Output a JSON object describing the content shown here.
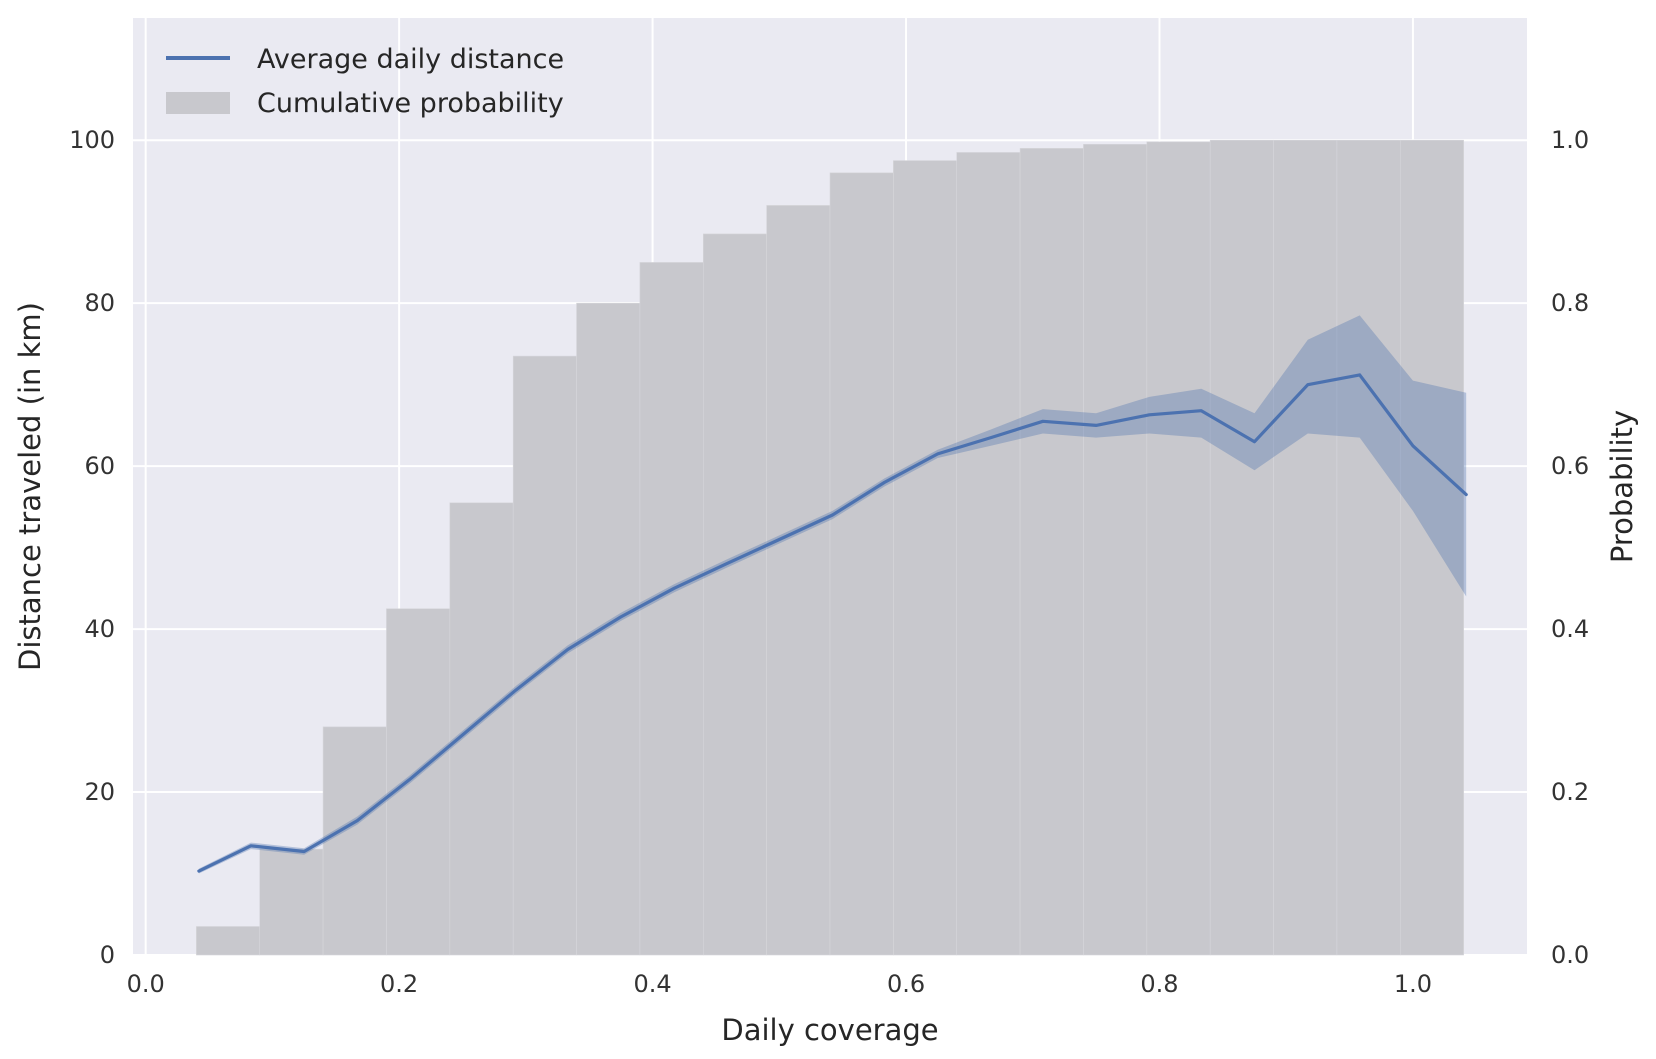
{
  "chart_data": {
    "type": "bar",
    "title": "",
    "xlabel": "Daily coverage",
    "ylabel_left": "Distance traveled (in km)",
    "ylabel_right": "Probability",
    "xlim": [
      -0.01,
      1.09
    ],
    "ylim_left": [
      0,
      115
    ],
    "ylim_right": [
      0,
      1.15
    ],
    "x_ticks": [
      0.0,
      0.2,
      0.4,
      0.6,
      0.8,
      1.0
    ],
    "x_tick_labels": [
      "0.0",
      "0.2",
      "0.4",
      "0.6",
      "0.8",
      "1.0"
    ],
    "y_left_ticks": [
      0,
      20,
      40,
      60,
      80,
      100
    ],
    "y_left_tick_labels": [
      "0",
      "20",
      "40",
      "60",
      "80",
      "100"
    ],
    "y_right_ticks": [
      0.0,
      0.2,
      0.4,
      0.6,
      0.8,
      1.0
    ],
    "y_right_tick_labels": [
      "0.0",
      "0.2",
      "0.4",
      "0.6",
      "0.8",
      "1.0"
    ],
    "grid": true,
    "legend_position": "top-left",
    "legend": [
      {
        "label": "Average daily distance",
        "kind": "line"
      },
      {
        "label": "Cumulative probability",
        "kind": "patch"
      }
    ],
    "colors": {
      "plot_background": "#eaeaf2",
      "grid": "#ffffff",
      "line": "#4c72b0",
      "band": "#4c72b0",
      "bars": "#c8c8cd"
    },
    "cumulative_probability": {
      "name": "Cumulative probability",
      "bin_edges": [
        0.04,
        0.09,
        0.14,
        0.19,
        0.24,
        0.29,
        0.34,
        0.39,
        0.44,
        0.49,
        0.54,
        0.59,
        0.64,
        0.69,
        0.74,
        0.79,
        0.84,
        0.89,
        0.94,
        0.99,
        1.04
      ],
      "values": [
        0.035,
        0.13,
        0.28,
        0.425,
        0.555,
        0.735,
        0.8,
        0.85,
        0.885,
        0.92,
        0.96,
        0.975,
        0.985,
        0.99,
        0.995,
        0.998,
        1.0,
        1.0,
        1.0,
        1.0
      ]
    },
    "average_daily_distance": {
      "name": "Average daily distance",
      "x": [
        0.042,
        0.083,
        0.125,
        0.167,
        0.208,
        0.25,
        0.292,
        0.333,
        0.375,
        0.417,
        0.458,
        0.5,
        0.542,
        0.583,
        0.625,
        0.667,
        0.708,
        0.75,
        0.792,
        0.833,
        0.875,
        0.917,
        0.958,
        1.0,
        1.042
      ],
      "y": [
        10.3,
        13.4,
        12.7,
        16.5,
        21.5,
        27,
        32.5,
        37.5,
        41.5,
        45,
        48,
        51,
        54,
        58,
        61.5,
        63.5,
        65.5,
        65,
        66.3,
        66.8,
        63,
        70,
        71.2,
        62.5,
        56.5
      ],
      "ci_low": [
        10.0,
        13.0,
        12.3,
        16.0,
        21.0,
        26.5,
        32.0,
        37.0,
        41.0,
        44.5,
        47.5,
        50.5,
        53.5,
        57.5,
        61.0,
        62.5,
        64.0,
        63.5,
        64.0,
        63.5,
        59.5,
        64.0,
        63.5,
        54.5,
        44.0
      ],
      "ci_high": [
        10.6,
        13.8,
        13.1,
        17.0,
        22.0,
        27.5,
        33.0,
        38.0,
        42.0,
        45.5,
        48.5,
        51.5,
        54.5,
        58.5,
        62.0,
        64.5,
        67.0,
        66.5,
        68.5,
        69.5,
        66.5,
        75.5,
        78.5,
        70.5,
        69.0
      ]
    }
  }
}
